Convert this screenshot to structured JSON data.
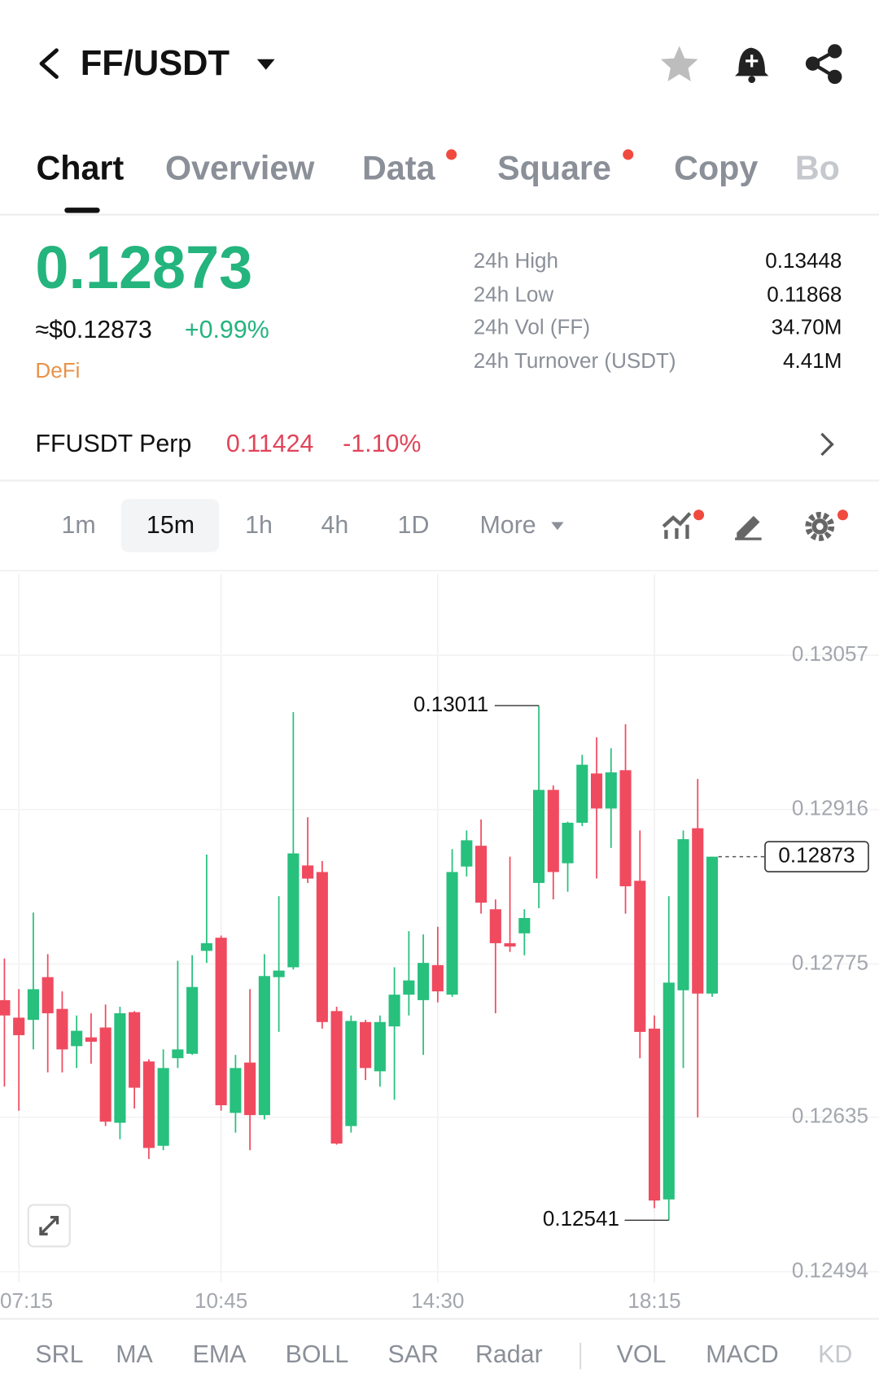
{
  "header": {
    "pair": "FF/USDT"
  },
  "tabs": [
    "Chart",
    "Overview",
    "Data",
    "Square",
    "Copy",
    "Bo"
  ],
  "price": {
    "last": "0.12873",
    "usd": "≈$0.12873",
    "change": "+0.99%",
    "tag": "DeFi"
  },
  "stats": [
    {
      "label": "24h High",
      "value": "0.13448"
    },
    {
      "label": "24h Low",
      "value": "0.11868"
    },
    {
      "label": "24h Vol (FF)",
      "value": "34.70M"
    },
    {
      "label": "24h Turnover (USDT)",
      "value": "4.41M"
    }
  ],
  "perp": {
    "name": "FFUSDT Perp",
    "price": "0.11424",
    "change": "-1.10%"
  },
  "intervals": [
    "1m",
    "15m",
    "1h",
    "4h",
    "1D",
    "More"
  ],
  "indicators": [
    "SRL",
    "MA",
    "EMA",
    "BOLL",
    "SAR",
    "Radar",
    "VOL",
    "MACD",
    "KD"
  ],
  "chart_data": {
    "type": "candlestick",
    "categories": [
      null,
      "07:15",
      null,
      null,
      null,
      null,
      null,
      null,
      null,
      null,
      null,
      null,
      null,
      null,
      null,
      "10:45",
      null,
      null,
      null,
      null,
      null,
      null,
      null,
      null,
      null,
      null,
      null,
      null,
      null,
      null,
      "14:30",
      null,
      null,
      null,
      null,
      null,
      null,
      null,
      null,
      null,
      null,
      null,
      null,
      null,
      null,
      "18:15",
      null,
      null,
      null,
      null
    ],
    "open": [
      0.12742,
      0.12726,
      0.12724,
      0.12763,
      0.12734,
      0.127,
      0.12708,
      0.12717,
      0.1263,
      0.12731,
      0.12686,
      0.12609,
      0.12689,
      0.12693,
      0.12787,
      0.12799,
      0.12639,
      0.12685,
      0.12637,
      0.12763,
      0.12772,
      0.12865,
      0.12859,
      0.12732,
      0.12627,
      0.12722,
      0.12677,
      0.12718,
      0.12747,
      0.12742,
      0.12774,
      0.12747,
      0.12864,
      0.12883,
      0.12825,
      0.12794,
      0.12803,
      0.12849,
      0.12934,
      0.12867,
      0.12904,
      0.12949,
      0.12917,
      0.12952,
      0.12851,
      0.12716,
      0.1256,
      0.12751,
      0.12899,
      0.12748
    ],
    "high": [
      0.1278,
      0.12752,
      0.12822,
      0.12784,
      0.1275,
      0.12728,
      0.1273,
      0.12738,
      0.12736,
      0.12732,
      0.12688,
      0.12697,
      0.12778,
      0.12783,
      0.12875,
      0.12801,
      0.12692,
      0.12752,
      0.12784,
      0.12837,
      0.13005,
      0.12909,
      0.12869,
      0.12736,
      0.12728,
      0.12724,
      0.12728,
      0.12772,
      0.12805,
      0.12802,
      0.12809,
      0.1288,
      0.12897,
      0.12907,
      0.12834,
      0.12873,
      0.12825,
      0.13011,
      0.12938,
      0.12905,
      0.12966,
      0.12982,
      0.12972,
      0.12994,
      0.12897,
      0.12728,
      0.12837,
      0.12897,
      0.12944,
      0.12873
    ],
    "low": [
      0.12663,
      0.12641,
      0.12697,
      0.12676,
      0.12676,
      0.1268,
      0.12684,
      0.12627,
      0.12615,
      0.12643,
      0.12597,
      0.12605,
      0.1268,
      0.12692,
      0.12776,
      0.12641,
      0.12621,
      0.12605,
      0.12633,
      0.12713,
      0.1277,
      0.12849,
      0.12716,
      0.1261,
      0.12621,
      0.12669,
      0.12663,
      0.12651,
      0.12728,
      0.12692,
      0.1274,
      0.12745,
      0.12855,
      0.12821,
      0.1273,
      0.12786,
      0.12783,
      0.12826,
      0.12834,
      0.12841,
      0.12901,
      0.12853,
      0.12881,
      0.12821,
      0.12689,
      0.12552,
      0.12541,
      0.1268,
      0.12635,
      0.12745
    ],
    "close": [
      0.12728,
      0.1271,
      0.12752,
      0.1273,
      0.12697,
      0.12714,
      0.12704,
      0.12631,
      0.1273,
      0.12662,
      0.12607,
      0.1268,
      0.12697,
      0.12754,
      0.12794,
      0.12646,
      0.1268,
      0.12637,
      0.12764,
      0.12769,
      0.12876,
      0.12853,
      0.12722,
      0.12611,
      0.12723,
      0.1268,
      0.12722,
      0.12747,
      0.1276,
      0.12776,
      0.1275,
      0.12859,
      0.12888,
      0.12831,
      0.12794,
      0.12791,
      0.12817,
      0.12934,
      0.12859,
      0.12904,
      0.12957,
      0.12917,
      0.1295,
      0.12846,
      0.12713,
      0.12559,
      0.12758,
      0.12889,
      0.12748,
      0.12873
    ],
    "up_color": "#27c07d",
    "down_color": "#f04a5f",
    "ylim": [
      0.12484,
      0.13131
    ],
    "yticks": [
      0.13057,
      0.12916,
      0.12775,
      0.12635,
      0.12494
    ],
    "grid": true
  }
}
